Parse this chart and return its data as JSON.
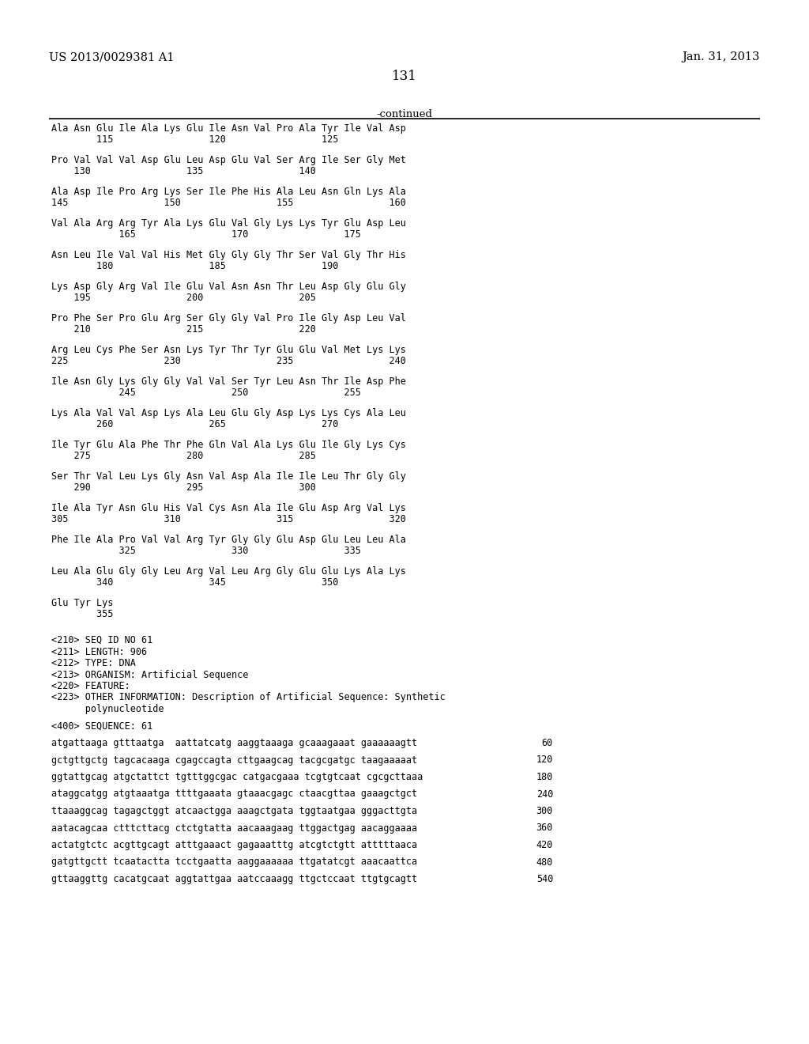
{
  "header_left": "US 2013/0029381 A1",
  "header_right": "Jan. 31, 2013",
  "page_number": "131",
  "continued_label": "-continued",
  "background_color": "#ffffff",
  "text_color": "#000000",
  "content_lines": [
    {
      "type": "seq",
      "text": "Ala Asn Glu Ile Ala Lys Glu Ile Asn Val Pro Ala Tyr Ile Val Asp"
    },
    {
      "type": "num",
      "text": "        115                 120                 125"
    },
    {
      "type": "blank"
    },
    {
      "type": "seq",
      "text": "Pro Val Val Val Asp Glu Leu Asp Glu Val Ser Arg Ile Ser Gly Met"
    },
    {
      "type": "num",
      "text": "    130                 135                 140"
    },
    {
      "type": "blank"
    },
    {
      "type": "seq",
      "text": "Ala Asp Ile Pro Arg Lys Ser Ile Phe His Ala Leu Asn Gln Lys Ala"
    },
    {
      "type": "num",
      "text": "145                 150                 155                 160"
    },
    {
      "type": "blank"
    },
    {
      "type": "seq",
      "text": "Val Ala Arg Arg Tyr Ala Lys Glu Val Gly Lys Lys Tyr Glu Asp Leu"
    },
    {
      "type": "num",
      "text": "            165                 170                 175"
    },
    {
      "type": "blank"
    },
    {
      "type": "seq",
      "text": "Asn Leu Ile Val Val His Met Gly Gly Gly Thr Ser Val Gly Thr His"
    },
    {
      "type": "num",
      "text": "        180                 185                 190"
    },
    {
      "type": "blank"
    },
    {
      "type": "seq",
      "text": "Lys Asp Gly Arg Val Ile Glu Val Asn Asn Thr Leu Asp Gly Glu Gly"
    },
    {
      "type": "num",
      "text": "    195                 200                 205"
    },
    {
      "type": "blank"
    },
    {
      "type": "seq",
      "text": "Pro Phe Ser Pro Glu Arg Ser Gly Gly Val Pro Ile Gly Asp Leu Val"
    },
    {
      "type": "num",
      "text": "    210                 215                 220"
    },
    {
      "type": "blank"
    },
    {
      "type": "seq",
      "text": "Arg Leu Cys Phe Ser Asn Lys Tyr Thr Tyr Glu Glu Val Met Lys Lys"
    },
    {
      "type": "num",
      "text": "225                 230                 235                 240"
    },
    {
      "type": "blank"
    },
    {
      "type": "seq",
      "text": "Ile Asn Gly Lys Gly Gly Val Val Ser Tyr Leu Asn Thr Ile Asp Phe"
    },
    {
      "type": "num",
      "text": "            245                 250                 255"
    },
    {
      "type": "blank"
    },
    {
      "type": "seq",
      "text": "Lys Ala Val Val Asp Lys Ala Leu Glu Gly Asp Lys Lys Cys Ala Leu"
    },
    {
      "type": "num",
      "text": "        260                 265                 270"
    },
    {
      "type": "blank"
    },
    {
      "type": "seq",
      "text": "Ile Tyr Glu Ala Phe Thr Phe Gln Val Ala Lys Glu Ile Gly Lys Cys"
    },
    {
      "type": "num",
      "text": "    275                 280                 285"
    },
    {
      "type": "blank"
    },
    {
      "type": "seq",
      "text": "Ser Thr Val Leu Lys Gly Asn Val Asp Ala Ile Ile Leu Thr Gly Gly"
    },
    {
      "type": "num",
      "text": "    290                 295                 300"
    },
    {
      "type": "blank"
    },
    {
      "type": "seq",
      "text": "Ile Ala Tyr Asn Glu His Val Cys Asn Ala Ile Glu Asp Arg Val Lys"
    },
    {
      "type": "num",
      "text": "305                 310                 315                 320"
    },
    {
      "type": "blank"
    },
    {
      "type": "seq",
      "text": "Phe Ile Ala Pro Val Val Arg Tyr Gly Gly Glu Asp Glu Leu Leu Ala"
    },
    {
      "type": "num",
      "text": "            325                 330                 335"
    },
    {
      "type": "blank"
    },
    {
      "type": "seq",
      "text": "Leu Ala Glu Gly Gly Leu Arg Val Leu Arg Gly Glu Glu Lys Ala Lys"
    },
    {
      "type": "num",
      "text": "        340                 345                 350"
    },
    {
      "type": "blank"
    },
    {
      "type": "seq",
      "text": "Glu Tyr Lys"
    },
    {
      "type": "num",
      "text": "        355"
    },
    {
      "type": "blank"
    },
    {
      "type": "blank"
    },
    {
      "type": "meta",
      "text": "<210> SEQ ID NO 61"
    },
    {
      "type": "meta",
      "text": "<211> LENGTH: 906"
    },
    {
      "type": "meta",
      "text": "<212> TYPE: DNA"
    },
    {
      "type": "meta",
      "text": "<213> ORGANISM: Artificial Sequence"
    },
    {
      "type": "meta",
      "text": "<220> FEATURE:"
    },
    {
      "type": "meta",
      "text": "<223> OTHER INFORMATION: Description of Artificial Sequence: Synthetic"
    },
    {
      "type": "meta",
      "text": "      polynucleotide"
    },
    {
      "type": "blank"
    },
    {
      "type": "meta",
      "text": "<400> SEQUENCE: 61"
    },
    {
      "type": "blank"
    },
    {
      "type": "dna",
      "text": "atgattaaga gtttaatga  aattatcatg aaggtaaaga gcaaagaaat gaaaaaagtt",
      "num": "60"
    },
    {
      "type": "blank"
    },
    {
      "type": "dna",
      "text": "gctgttgctg tagcacaaga cgagccagta cttgaagcag tacgcgatgc taagaaaaat",
      "num": "120"
    },
    {
      "type": "blank"
    },
    {
      "type": "dna",
      "text": "ggtattgcag atgctattct tgtttggcgac catgacgaaa tcgtgtcaat cgcgcttaaa",
      "num": "180"
    },
    {
      "type": "blank"
    },
    {
      "type": "dna",
      "text": "ataggcatgg atgtaaatga ttttgaaata gtaaacgagc ctaacgttaa gaaagctgct",
      "num": "240"
    },
    {
      "type": "blank"
    },
    {
      "type": "dna",
      "text": "ttaaaggcag tagagctggt atcaactgga aaagctgata tggtaatgaa gggacttgta",
      "num": "300"
    },
    {
      "type": "blank"
    },
    {
      "type": "dna",
      "text": "aatacagcaa ctttcttacg ctctgtatta aacaaagaag ttggactgag aacaggaaaa",
      "num": "360"
    },
    {
      "type": "blank"
    },
    {
      "type": "dna",
      "text": "actatgtctc acgttgcagt atttgaaact gagaaatttg atcgtctgtt atttttaaca",
      "num": "420"
    },
    {
      "type": "blank"
    },
    {
      "type": "dna",
      "text": "gatgttgctt tcaatactta tcctgaatta aaggaaaaaa ttgatatcgt aaacaattca",
      "num": "480"
    },
    {
      "type": "blank"
    },
    {
      "type": "dna",
      "text": "gttaaggttg cacatgcaat aggtattgaa aatccaaagg ttgctccaat ttgtgcagtt",
      "num": "540"
    }
  ]
}
